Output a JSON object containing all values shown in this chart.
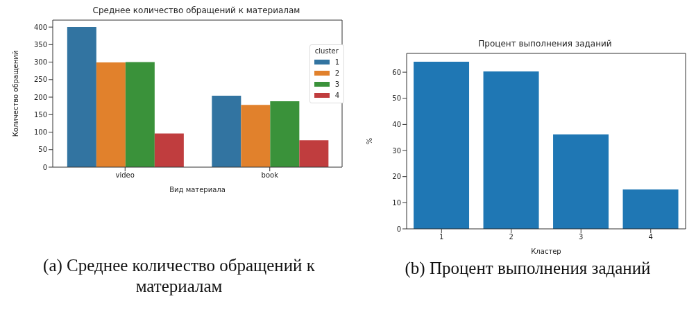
{
  "chart_data": [
    {
      "type": "bar",
      "title": "Среднее количество обращений к материалам",
      "xlabel": "Вид материала",
      "ylabel": "Количество обращений",
      "legend_title": "cluster",
      "legend": "top right",
      "categories": [
        "video",
        "book"
      ],
      "series": [
        {
          "name": "1",
          "color": "#3274a1",
          "values": [
            400,
            204
          ]
        },
        {
          "name": "2",
          "color": "#e1812c",
          "values": [
            299,
            178
          ]
        },
        {
          "name": "3",
          "color": "#3a923a",
          "values": [
            300,
            188
          ]
        },
        {
          "name": "4",
          "color": "#c03d3e",
          "values": [
            96,
            77
          ]
        }
      ],
      "ylim": [
        0,
        420
      ],
      "yticks": [
        0,
        50,
        100,
        150,
        200,
        250,
        300,
        350,
        400
      ],
      "grid": false,
      "annotations": [
        "(a) Среднее количество обращений к материалам"
      ]
    },
    {
      "type": "bar",
      "title": "Процент выполнения заданий",
      "xlabel": "Кластер",
      "ylabel": "%",
      "categories": [
        "1",
        "2",
        "3",
        "4"
      ],
      "series": [
        {
          "color": "#1f77b4",
          "values": [
            64,
            60.3,
            36.2,
            15.1
          ]
        }
      ],
      "ylim": [
        0,
        67.2
      ],
      "yticks": [
        0,
        10,
        20,
        30,
        40,
        50,
        60
      ],
      "grid": false,
      "annotations": [
        "(b) Процент выполнения заданий"
      ]
    }
  ]
}
